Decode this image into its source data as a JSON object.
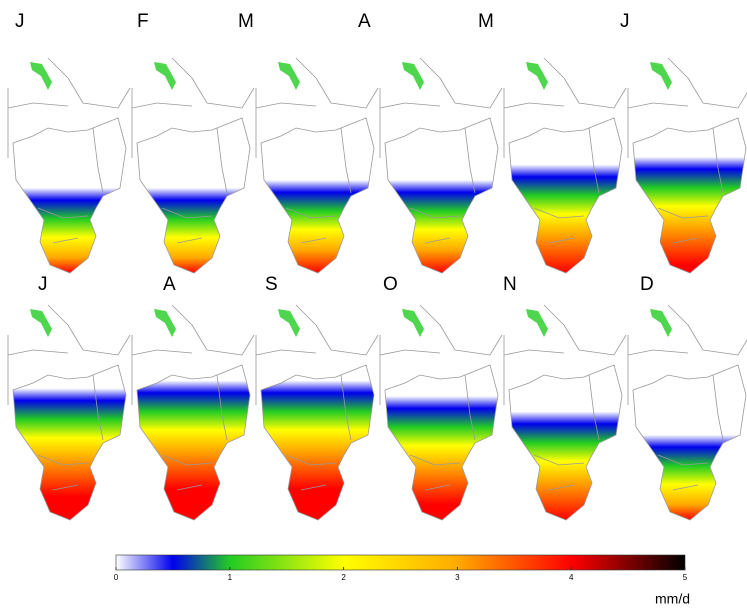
{
  "panels": [
    {
      "label": "J"
    },
    {
      "label": "F"
    },
    {
      "label": "M"
    },
    {
      "label": "A"
    },
    {
      "label": "M"
    },
    {
      "label": "J"
    },
    {
      "label": "J"
    },
    {
      "label": "A"
    },
    {
      "label": "S"
    },
    {
      "label": "O"
    },
    {
      "label": "N"
    },
    {
      "label": "D"
    }
  ],
  "colorbar": {
    "lim": [
      0,
      5
    ],
    "ticks": [
      0,
      1,
      2,
      3,
      4,
      5
    ],
    "unit": "mm/d",
    "colors": [
      "#ffffff",
      "#0000ee",
      "#22cc22",
      "#ffff00",
      "#ffaa00",
      "#ff0000",
      "#000000"
    ]
  }
}
